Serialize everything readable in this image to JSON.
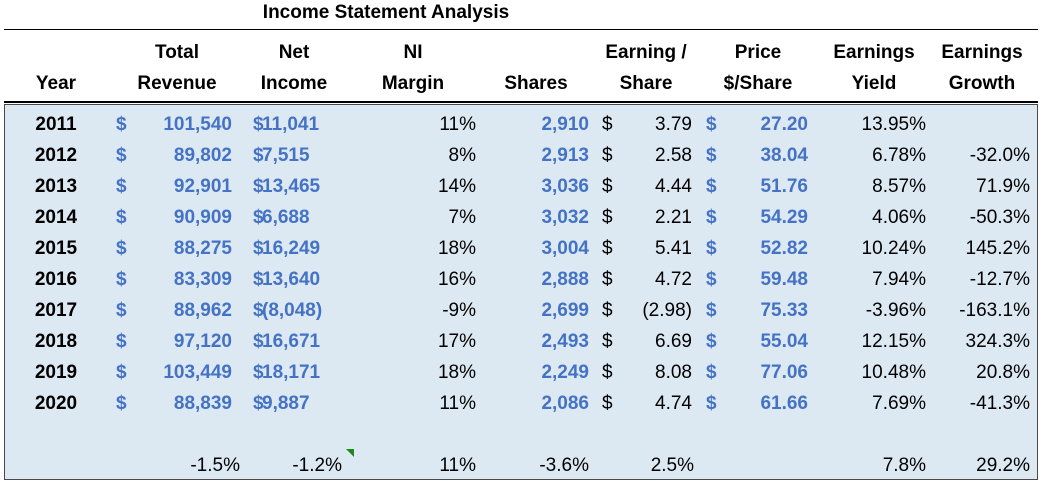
{
  "title": "Income Statement Analysis",
  "headers": {
    "year": [
      "",
      "Year"
    ],
    "total_revenue": [
      "Total",
      "Revenue"
    ],
    "net_income": [
      "Net",
      "Income"
    ],
    "ni_margin": [
      "NI",
      "Margin"
    ],
    "shares": [
      "",
      "Shares"
    ],
    "eps": [
      "Earning /",
      "Share"
    ],
    "price": [
      "Price",
      "$/Share"
    ],
    "earnings_yield": [
      "Earnings",
      "Yield"
    ],
    "earnings_growth": [
      "Earnings",
      "Growth"
    ]
  },
  "rows": [
    {
      "year": "2011",
      "revenue": "101,540",
      "net_income": "11,041",
      "margin": "11%",
      "shares": "2,910",
      "eps": "3.79",
      "price": "27.20",
      "yield": "13.95%",
      "growth": ""
    },
    {
      "year": "2012",
      "revenue": "89,802",
      "net_income": "7,515",
      "margin": "8%",
      "shares": "2,913",
      "eps": "2.58",
      "price": "38.04",
      "yield": "6.78%",
      "growth": "-32.0%"
    },
    {
      "year": "2013",
      "revenue": "92,901",
      "net_income": "13,465",
      "margin": "14%",
      "shares": "3,036",
      "eps": "4.44",
      "price": "51.76",
      "yield": "8.57%",
      "growth": "71.9%"
    },
    {
      "year": "2014",
      "revenue": "90,909",
      "net_income": "6,688",
      "margin": "7%",
      "shares": "3,032",
      "eps": "2.21",
      "price": "54.29",
      "yield": "4.06%",
      "growth": "-50.3%"
    },
    {
      "year": "2015",
      "revenue": "88,275",
      "net_income": "16,249",
      "margin": "18%",
      "shares": "3,004",
      "eps": "5.41",
      "price": "52.82",
      "yield": "10.24%",
      "growth": "145.2%"
    },
    {
      "year": "2016",
      "revenue": "83,309",
      "net_income": "13,640",
      "margin": "16%",
      "shares": "2,888",
      "eps": "4.72",
      "price": "59.48",
      "yield": "7.94%",
      "growth": "-12.7%"
    },
    {
      "year": "2017",
      "revenue": "88,962",
      "net_income": "(8,048)",
      "margin": "-9%",
      "shares": "2,699",
      "eps": "(2.98)",
      "price": "75.33",
      "yield": "-3.96%",
      "growth": "-163.1%"
    },
    {
      "year": "2018",
      "revenue": "97,120",
      "net_income": "16,671",
      "margin": "17%",
      "shares": "2,493",
      "eps": "6.69",
      "price": "55.04",
      "yield": "12.15%",
      "growth": "324.3%"
    },
    {
      "year": "2019",
      "revenue": "103,449",
      "net_income": "18,171",
      "margin": "18%",
      "shares": "2,249",
      "eps": "8.08",
      "price": "77.06",
      "yield": "10.48%",
      "growth": "20.8%"
    },
    {
      "year": "2020",
      "revenue": "88,839",
      "net_income": "9,887",
      "margin": "11%",
      "shares": "2,086",
      "eps": "4.74",
      "price": "61.66",
      "yield": "7.69%",
      "growth": "-41.3%"
    }
  ],
  "currency_symbol": "$",
  "summary": {
    "revenue": "-1.5%",
    "net_income": "-1.2%",
    "margin": "11%",
    "shares": "-3.6%",
    "eps": "2.5%",
    "yield": "7.8%",
    "growth": "29.2%"
  }
}
